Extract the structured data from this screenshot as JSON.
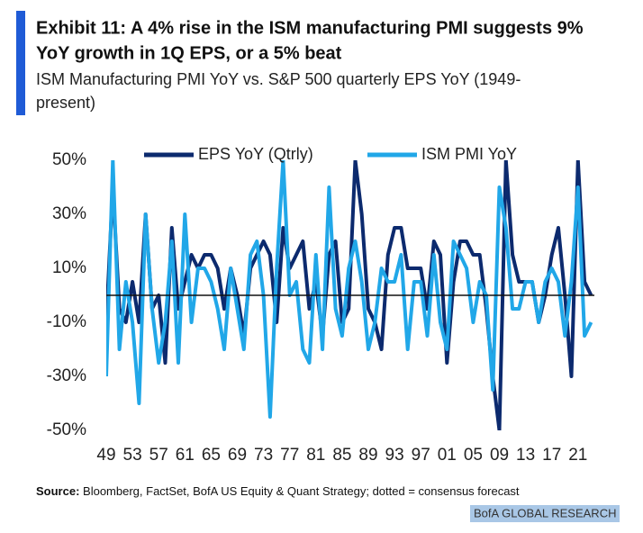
{
  "header": {
    "title_line1": "Exhibit 11: A 4% rise in the ISM manufacturing PMI suggests 9%",
    "title_line2": "YoY growth in 1Q EPS, or a 5% beat",
    "subtitle_line1": "ISM Manufacturing PMI YoY vs. S&P 500 quarterly EPS YoY (1949-",
    "subtitle_line2": "present)"
  },
  "chart_data": {
    "type": "line",
    "x": [
      1949,
      1950,
      1951,
      1952,
      1953,
      1954,
      1955,
      1956,
      1957,
      1958,
      1959,
      1960,
      1961,
      1962,
      1963,
      1964,
      1965,
      1966,
      1967,
      1968,
      1969,
      1970,
      1971,
      1972,
      1973,
      1974,
      1975,
      1976,
      1977,
      1978,
      1979,
      1980,
      1981,
      1982,
      1983,
      1984,
      1985,
      1986,
      1987,
      1988,
      1989,
      1990,
      1991,
      1992,
      1993,
      1994,
      1995,
      1996,
      1997,
      1998,
      1999,
      2000,
      2001,
      2002,
      2003,
      2004,
      2005,
      2006,
      2007,
      2008,
      2009,
      2010,
      2011,
      2012,
      2013,
      2014,
      2015,
      2016,
      2017,
      2018,
      2019,
      2020,
      2021,
      2022,
      2023
    ],
    "series": [
      {
        "name": "EPS YoY (Qtrly)",
        "color": "#0c2a6e",
        "values": [
          -10,
          40,
          -5,
          -10,
          5,
          -10,
          30,
          -5,
          0,
          -25,
          25,
          -5,
          5,
          15,
          10,
          15,
          15,
          10,
          -5,
          10,
          0,
          -15,
          10,
          15,
          20,
          15,
          -10,
          25,
          10,
          15,
          20,
          -5,
          5,
          -15,
          15,
          20,
          -10,
          -5,
          50,
          30,
          -5,
          -10,
          -20,
          15,
          25,
          25,
          10,
          10,
          10,
          -5,
          20,
          15,
          -25,
          5,
          20,
          20,
          15,
          15,
          -5,
          -30,
          -50,
          50,
          15,
          5,
          5,
          5,
          -10,
          0,
          15,
          25,
          0,
          -30,
          50,
          5,
          0
        ]
      },
      {
        "name": "ISM PMI YoY",
        "color": "#21a7e8",
        "values": [
          -30,
          50,
          -20,
          5,
          -10,
          -40,
          30,
          -5,
          -25,
          -10,
          20,
          -25,
          30,
          -10,
          10,
          10,
          5,
          -5,
          -20,
          10,
          -5,
          -20,
          15,
          20,
          0,
          -45,
          10,
          50,
          0,
          5,
          -20,
          -25,
          15,
          -20,
          40,
          -5,
          -15,
          10,
          20,
          5,
          -20,
          -10,
          10,
          5,
          5,
          15,
          -20,
          5,
          5,
          -15,
          15,
          -10,
          -20,
          20,
          15,
          10,
          -10,
          5,
          0,
          -35,
          40,
          25,
          -5,
          -5,
          5,
          5,
          -10,
          5,
          10,
          5,
          -15,
          5,
          40,
          -15,
          -10
        ]
      }
    ],
    "xlim": [
      1949,
      2023.5
    ],
    "xticks": [
      {
        "value": 1949,
        "label": "49"
      },
      {
        "value": 1953,
        "label": "53"
      },
      {
        "value": 1957,
        "label": "57"
      },
      {
        "value": 1961,
        "label": "61"
      },
      {
        "value": 1965,
        "label": "65"
      },
      {
        "value": 1969,
        "label": "69"
      },
      {
        "value": 1973,
        "label": "73"
      },
      {
        "value": 1977,
        "label": "77"
      },
      {
        "value": 1981,
        "label": "81"
      },
      {
        "value": 1985,
        "label": "85"
      },
      {
        "value": 1989,
        "label": "89"
      },
      {
        "value": 1993,
        "label": "93"
      },
      {
        "value": 1997,
        "label": "97"
      },
      {
        "value": 2001,
        "label": "01"
      },
      {
        "value": 2005,
        "label": "05"
      },
      {
        "value": 2009,
        "label": "09"
      },
      {
        "value": 2013,
        "label": "13"
      },
      {
        "value": 2017,
        "label": "17"
      },
      {
        "value": 2021,
        "label": "21"
      }
    ],
    "ylim": [
      -50,
      50
    ],
    "yticks": [
      {
        "value": 50,
        "label": "50%"
      },
      {
        "value": 30,
        "label": "30%"
      },
      {
        "value": 10,
        "label": "10%"
      },
      {
        "value": -10,
        "label": "-10%"
      },
      {
        "value": -30,
        "label": "-30%"
      },
      {
        "value": -50,
        "label": "-50%"
      }
    ],
    "zero_line": 0
  },
  "footer": {
    "source_label": "Source:",
    "source_text": "Bloomberg, FactSet, BofA US Equity & Quant Strategy; dotted = consensus forecast",
    "brand": "BofA GLOBAL RESEARCH"
  }
}
